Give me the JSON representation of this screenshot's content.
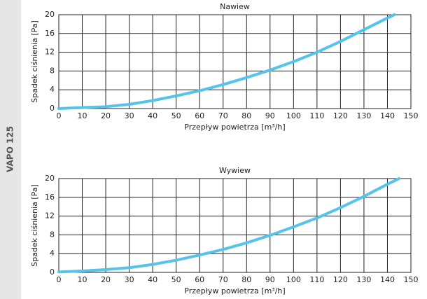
{
  "sidebar_label": "VAPO 125",
  "chart_data": [
    {
      "type": "line",
      "title": "Nawiew",
      "xlabel": "Przepływ powietrza [m³/h]",
      "ylabel": "Spadek ciśnienia [Pa]",
      "xlim": [
        0,
        150
      ],
      "ylim": [
        0,
        20
      ],
      "xticks": [
        0,
        10,
        20,
        30,
        40,
        50,
        60,
        70,
        80,
        90,
        100,
        110,
        120,
        130,
        140,
        150
      ],
      "yticks": [
        0,
        4,
        8,
        12,
        16,
        20
      ],
      "grid": true,
      "x": [
        0,
        10,
        20,
        30,
        40,
        50,
        60,
        70,
        80,
        90,
        100,
        110,
        120,
        130,
        140,
        143
      ],
      "series": [
        {
          "name": "Nawiew",
          "color": "#55c3ea",
          "values": [
            0,
            0.2,
            0.4,
            0.9,
            1.7,
            2.7,
            3.8,
            5.1,
            6.6,
            8.2,
            10,
            12,
            14.3,
            16.8,
            19.3,
            20
          ]
        }
      ]
    },
    {
      "type": "line",
      "title": "Wywiew",
      "xlabel": "Przepływ powietrza [m³/h]",
      "ylabel": "Spadek ciśnienia [Pa]",
      "xlim": [
        0,
        150
      ],
      "ylim": [
        0,
        20
      ],
      "xticks": [
        0,
        10,
        20,
        30,
        40,
        50,
        60,
        70,
        80,
        90,
        100,
        110,
        120,
        130,
        140,
        150
      ],
      "yticks": [
        0,
        4,
        8,
        12,
        16,
        20
      ],
      "grid": true,
      "x": [
        0,
        10,
        20,
        30,
        40,
        50,
        60,
        70,
        80,
        90,
        100,
        110,
        120,
        130,
        140,
        145
      ],
      "series": [
        {
          "name": "Wywiew",
          "color": "#55c3ea",
          "values": [
            0.1,
            0.3,
            0.6,
            1.0,
            1.7,
            2.6,
            3.7,
            4.9,
            6.3,
            7.9,
            9.7,
            11.6,
            13.8,
            16.2,
            18.8,
            20
          ]
        }
      ]
    }
  ]
}
